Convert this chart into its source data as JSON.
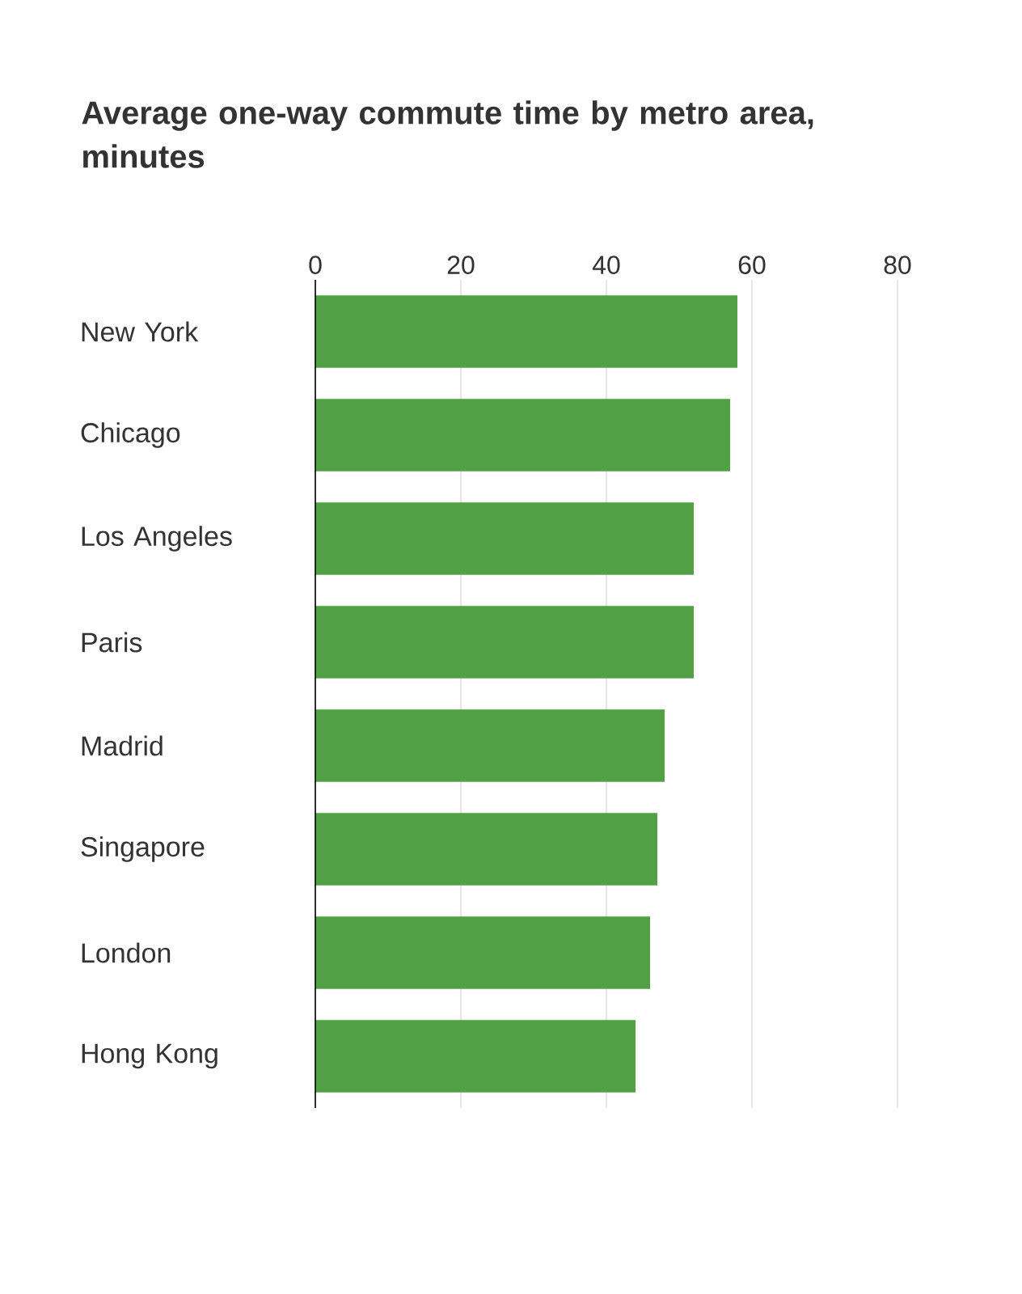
{
  "chart_data": {
    "type": "bar",
    "orientation": "horizontal",
    "title": "Average one-way commute time by metro area, minutes",
    "categories": [
      "New York",
      "Chicago",
      "Los Angeles",
      "Paris",
      "Madrid",
      "Singapore",
      "London",
      "Hong Kong"
    ],
    "values": [
      58,
      57,
      52,
      52,
      48,
      47,
      46,
      44
    ],
    "color": "#52a046",
    "xlim": [
      0,
      80
    ],
    "xticks": [
      0,
      20,
      40,
      60,
      80
    ],
    "grid": "x"
  }
}
